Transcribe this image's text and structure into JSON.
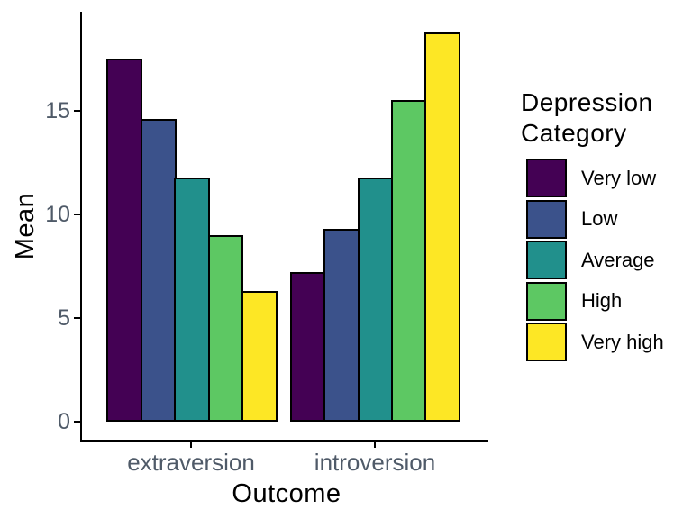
{
  "chart_data": {
    "type": "bar",
    "title": "",
    "xlabel": "Outcome",
    "ylabel": "Mean",
    "categories": [
      "extraversion",
      "introversion"
    ],
    "series": [
      {
        "name": "Very low",
        "color": "#440154",
        "values": [
          17.5,
          7.2
        ]
      },
      {
        "name": "Low",
        "color": "#3B528B",
        "values": [
          14.6,
          9.3
        ]
      },
      {
        "name": "Average",
        "color": "#21908C",
        "values": [
          11.8,
          11.8
        ]
      },
      {
        "name": "High",
        "color": "#5DC863",
        "values": [
          9.0,
          15.5
        ]
      },
      {
        "name": "Very high",
        "color": "#FDE725",
        "values": [
          6.3,
          18.8
        ]
      }
    ],
    "y_ticks": [
      "0",
      "5",
      "10",
      "15"
    ],
    "y_tick_values": [
      0,
      5,
      10,
      15
    ],
    "ylim": [
      0,
      19.8
    ],
    "grid": false,
    "bar_outline_color": "#000000",
    "axis_line_color": "#000000",
    "tick_label_color": "#4f5a68",
    "legend": {
      "position": "right",
      "title_lines": [
        "Depression",
        "Category"
      ],
      "items": [
        "Very low",
        "Low",
        "Average",
        "High",
        "Very high"
      ]
    }
  }
}
